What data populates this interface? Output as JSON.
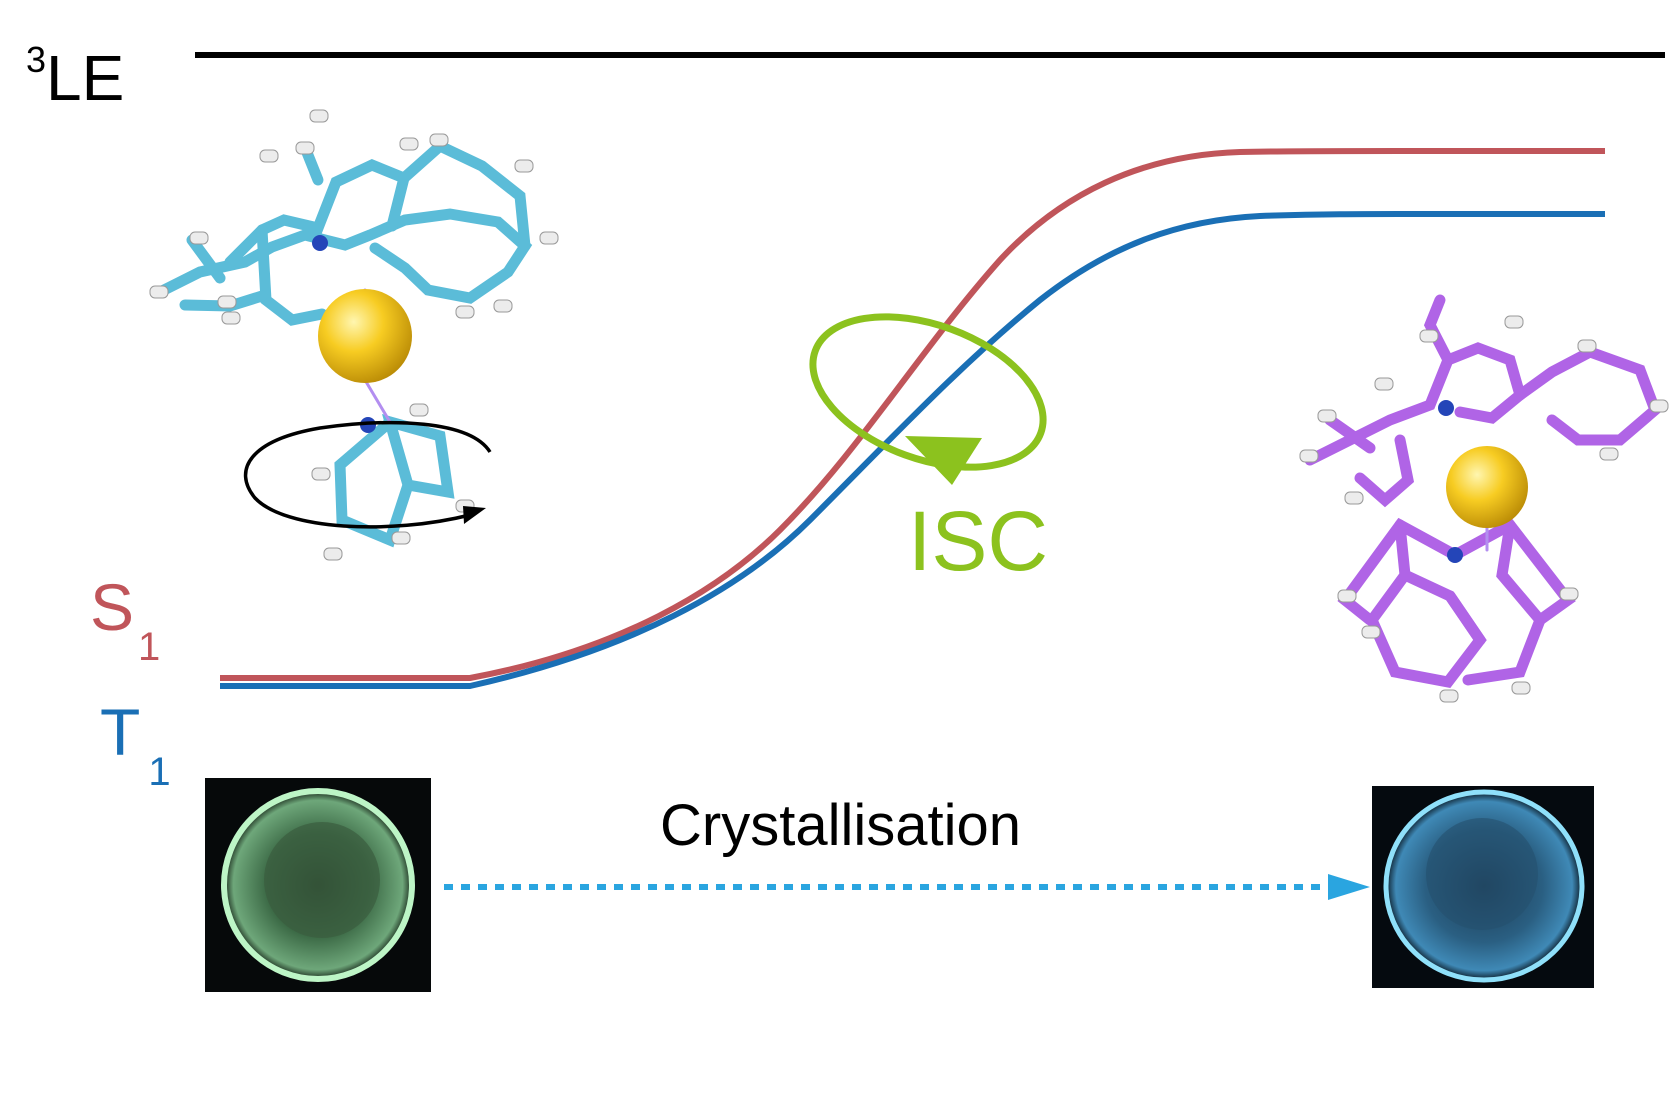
{
  "labels": {
    "le_sup": "3",
    "le_main": "LE",
    "s1_main": "S",
    "s1_sub": "1",
    "t1_main": "T",
    "t1_sub": "1",
    "isc": "ISC",
    "process": "Crystallisation"
  },
  "colors": {
    "le_line": "#000000",
    "s1": "#c0555a",
    "t1": "#1a6fb5",
    "isc": "#8cc21e",
    "arrow": "#2aa5e0",
    "molecule_left": "#5bbcd8",
    "molecule_right": "#b064e6",
    "metal": "#f2c01a",
    "photo_left_glow": "#8fe6a0",
    "photo_right_glow": "#6fd0f2"
  },
  "icons": {
    "molecule_left": "molecule-cyan-icon",
    "molecule_right": "molecule-purple-icon",
    "rotation": "rotation-arrow-icon",
    "photo_left": "green-emission-photo",
    "photo_right": "blue-emission-photo"
  }
}
